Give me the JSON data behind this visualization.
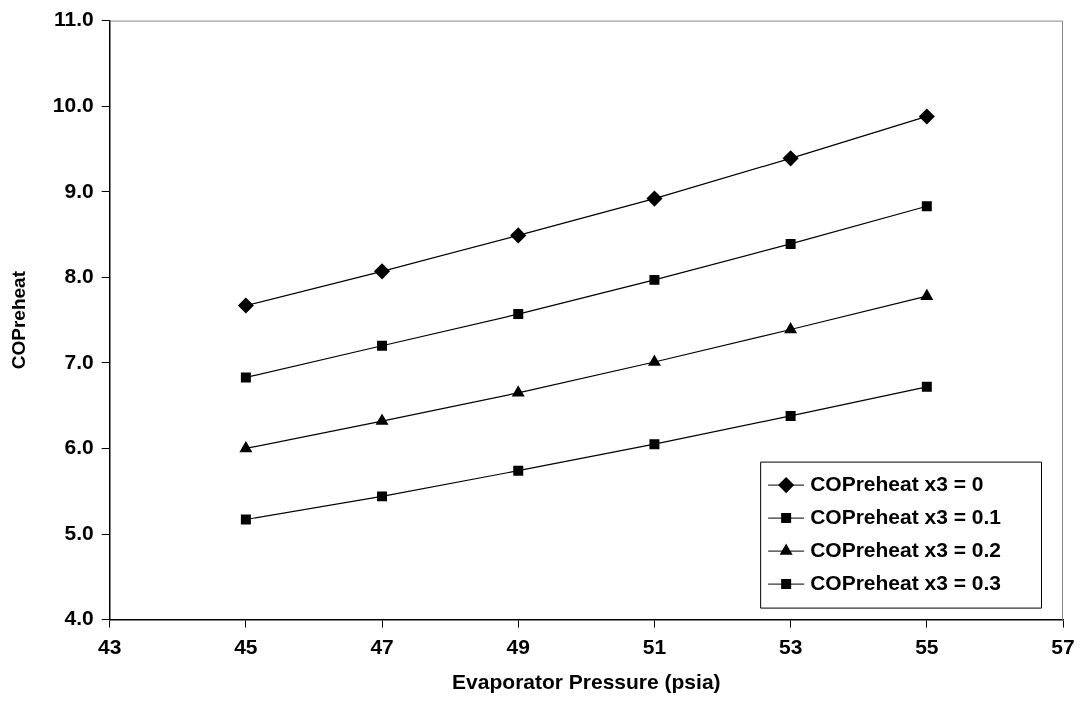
{
  "chart_data": {
    "type": "line",
    "xlabel": "Evaporator Pressure (psia)",
    "ylabel": "COPreheat",
    "x": [
      45,
      47,
      49,
      51,
      53,
      55
    ],
    "series": [
      {
        "name": "COPreheat x3 = 0",
        "color": "#000000",
        "marker": "diamond",
        "values": [
          7.67,
          8.07,
          8.49,
          8.92,
          9.39,
          9.88
        ]
      },
      {
        "name": "COPreheat x3 = 0.1",
        "color": "#000000",
        "marker": "square",
        "values": [
          6.83,
          7.2,
          7.57,
          7.97,
          8.39,
          8.83
        ]
      },
      {
        "name": "COPreheat x3 = 0.2",
        "color": "#000000",
        "marker": "triangle",
        "values": [
          6.0,
          6.32,
          6.65,
          7.01,
          7.39,
          7.78
        ]
      },
      {
        "name": "COPreheat x3 = 0.3",
        "color": "#000000",
        "marker": "square",
        "values": [
          5.17,
          5.44,
          5.74,
          6.05,
          6.38,
          6.72
        ]
      }
    ],
    "xlim": [
      43,
      57
    ],
    "xticks": [
      43,
      45,
      47,
      49,
      51,
      53,
      55,
      57
    ],
    "ylim": [
      4,
      11
    ],
    "yticks": [
      {
        "value": 4,
        "label": "4.0"
      },
      {
        "value": 5,
        "label": "5.0"
      },
      {
        "value": 6,
        "label": "6.0"
      },
      {
        "value": 7,
        "label": "7.0"
      },
      {
        "value": 8,
        "label": "8.0"
      },
      {
        "value": 9,
        "label": "9.0"
      },
      {
        "value": 10,
        "label": "10.0"
      },
      {
        "value": 11,
        "label": "11.0"
      }
    ],
    "grid": false,
    "legend": "bottom right",
    "line_style": "solid"
  }
}
